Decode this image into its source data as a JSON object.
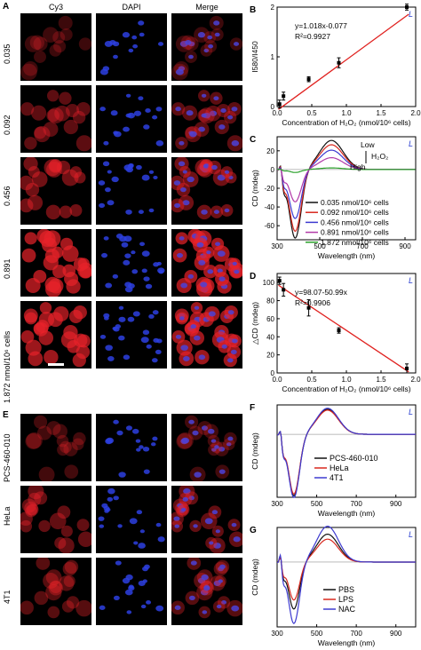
{
  "colors": {
    "cy3": "#e8222a",
    "dapi": "#2d3fe0",
    "merge_red": "#d1245a",
    "merge_blue": "#4b42d8",
    "fit_line": "#e0201e"
  },
  "panels": {
    "A": {
      "label": "A",
      "columns": [
        "Cy3",
        "DAPI",
        "Merge"
      ],
      "rows": [
        "0.035",
        "0.092",
        "0.456",
        "0.891",
        "1.872 nmol/10⁶ cells"
      ],
      "cell_density": [
        0.2,
        0.45,
        0.6,
        1.0,
        0.95
      ]
    },
    "E": {
      "label": "E",
      "rows": [
        "PCS-460-010",
        "HeLa",
        "4T1"
      ],
      "cell_density": [
        0.25,
        0.5,
        0.4
      ]
    },
    "B": {
      "label": "B",
      "italic_tag": "L",
      "equation": "y=1.018x-0.077",
      "r2": "R²=0.9927",
      "ylabel": "I580/I450",
      "xlabel": "Concentration of H₂O₂ (nmol/10⁶ cells)"
    },
    "C": {
      "label": "C",
      "italic_tag": "L",
      "ylabel": "CD (mdeg)",
      "xlabel": "Wavelength (nm)",
      "annot_low": "Low",
      "annot_h2o2": "H₂O₂",
      "annot_high": "High"
    },
    "D": {
      "label": "D",
      "italic_tag": "L",
      "equation": "y=98.07-50.99x",
      "r2": "R²=0.9906",
      "ylabel": "△CD (mdeg)",
      "xlabel": "Concentration of H₂O₂ (nmol/10⁶ cells)"
    },
    "F": {
      "label": "F",
      "italic_tag": "L",
      "ylabel": "CD (mdeg)",
      "xlabel": "Wavelength (nm)"
    },
    "G": {
      "label": "G",
      "italic_tag": "L",
      "ylabel": "CD (mdeg)",
      "xlabel": "Wavelength (nm)"
    }
  },
  "chart_data": [
    {
      "id": "B",
      "type": "scatter",
      "xlim": [
        0,
        2
      ],
      "ylim": [
        0,
        2
      ],
      "xticks": [
        "0.0",
        "0.5",
        "1.0",
        "1.5",
        "2.0"
      ],
      "yticks": [
        "0",
        "1",
        "2"
      ],
      "x": [
        0.035,
        0.092,
        0.456,
        0.891,
        1.872
      ],
      "y": [
        0.05,
        0.21,
        0.55,
        0.88,
        2.0
      ],
      "err": [
        0.08,
        0.08,
        0.05,
        0.1,
        0.06
      ],
      "fit": {
        "slope": 1.018,
        "intercept": -0.077
      }
    },
    {
      "id": "C",
      "type": "line",
      "xlim": [
        300,
        950
      ],
      "ylim": [
        -75,
        35
      ],
      "xticks": [
        "300",
        "500",
        "700",
        "900"
      ],
      "yticks": [
        "-60",
        "-40",
        "-20",
        "0",
        "20"
      ],
      "series": [
        {
          "name": "0.035 nmol/10⁶ cells",
          "color": "#111111",
          "peak": 27,
          "trough": -70,
          "shoulder": -15
        },
        {
          "name": "0.092 nmol/10⁶ cells",
          "color": "#d8281e",
          "peak": 23,
          "trough": -63,
          "shoulder": -13
        },
        {
          "name": "0.456 nmol/10⁶ cells",
          "color": "#3d3ad0",
          "peak": 18,
          "trough": -50,
          "shoulder": -11
        },
        {
          "name": "0.891 nmol/10⁶ cells",
          "color": "#b23aa8",
          "peak": 11,
          "trough": -33,
          "shoulder": -8
        },
        {
          "name": "1.872 nmol/10⁶ cells",
          "color": "#2aa02a",
          "peak": 1.5,
          "trough": -3,
          "shoulder": -1
        }
      ]
    },
    {
      "id": "D",
      "type": "scatter",
      "xlim": [
        0,
        2
      ],
      "ylim": [
        0,
        110
      ],
      "xticks": [
        "0.0",
        "0.5",
        "1.0",
        "1.5",
        "2.0"
      ],
      "yticks": [
        "0",
        "20",
        "40",
        "60",
        "80",
        "100"
      ],
      "x": [
        0.035,
        0.092,
        0.456,
        0.891,
        1.872
      ],
      "y": [
        102,
        92,
        72,
        47,
        5
      ],
      "err": [
        4,
        7,
        9,
        3,
        5
      ],
      "fit": {
        "slope": -50.99,
        "intercept": 98.07
      }
    },
    {
      "id": "F",
      "type": "line",
      "xlim": [
        300,
        1000
      ],
      "ylim": [
        -75,
        35
      ],
      "xticks": [
        "300",
        "500",
        "700",
        "900"
      ],
      "yticks": [],
      "series": [
        {
          "name": "PCS-460-010",
          "color": "#111111",
          "peak": 26,
          "trough": -70,
          "shoulder": -15
        },
        {
          "name": "HeLa",
          "color": "#d8281e",
          "peak": 25,
          "trough": -68,
          "shoulder": -15
        },
        {
          "name": "4T1",
          "color": "#3d3ad0",
          "peak": 27,
          "trough": -72,
          "shoulder": -16
        }
      ]
    },
    {
      "id": "G",
      "type": "line",
      "xlim": [
        300,
        1000
      ],
      "ylim": [
        -75,
        40
      ],
      "xticks": [
        "300",
        "500",
        "700",
        "900"
      ],
      "yticks": [],
      "series": [
        {
          "name": "PBS",
          "color": "#111111",
          "peak": 28,
          "trough": -52,
          "shoulder": -12
        },
        {
          "name": "LPS",
          "color": "#d8281e",
          "peak": 23,
          "trough": -42,
          "shoulder": -10
        },
        {
          "name": "NAC",
          "color": "#3d3ad0",
          "peak": 36,
          "trough": -68,
          "shoulder": -15
        }
      ]
    }
  ]
}
